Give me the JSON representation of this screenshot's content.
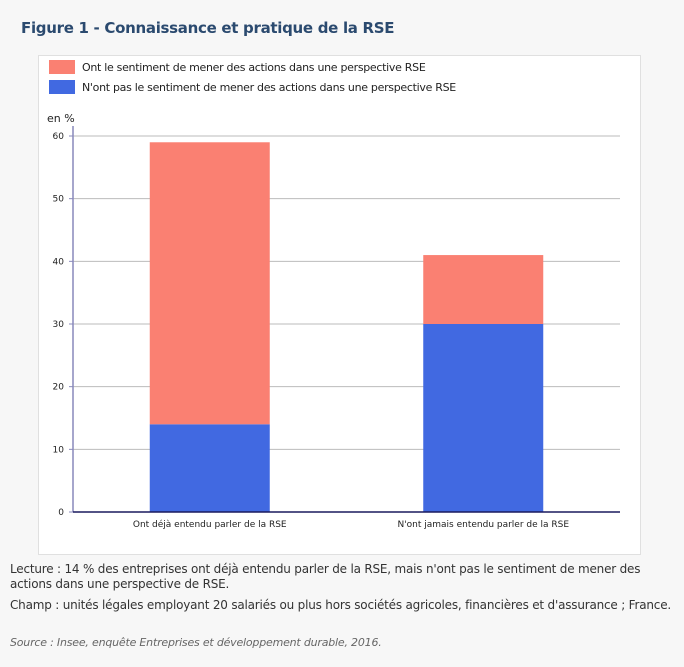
{
  "title": "Figure 1 - Connaissance et pratique de la RSE",
  "chart_data": {
    "type": "bar",
    "stacked": true,
    "categories": [
      "Ont déjà entendu parler de la RSE",
      "N'ont jamais entendu parler de la RSE"
    ],
    "series": [
      {
        "name": "N'ont pas le sentiment de mener des actions dans une perspective RSE",
        "values": [
          14,
          30
        ],
        "color": "#4169e1"
      },
      {
        "name": "Ont le sentiment de mener des actions dans une perspective RSE",
        "values": [
          45,
          11
        ],
        "color": "#fa8072"
      }
    ],
    "ylabel": "en %",
    "ylim": [
      0,
      60
    ],
    "yticks": [
      0,
      10,
      20,
      30,
      40,
      50,
      60
    ],
    "grid": true,
    "legend": "top-left"
  },
  "notes": {
    "lecture": "Lecture : 14 % des entreprises ont déjà entendu parler de la RSE, mais n'ont pas le sentiment de mener des actions dans une perspective de RSE.",
    "champ": "Champ : unités légales employant 20 salariés ou plus hors sociétés agricoles, financières et d'assurance ; France.",
    "source": "Source : Insee, enquête Entreprises et développement durable, 2016."
  }
}
